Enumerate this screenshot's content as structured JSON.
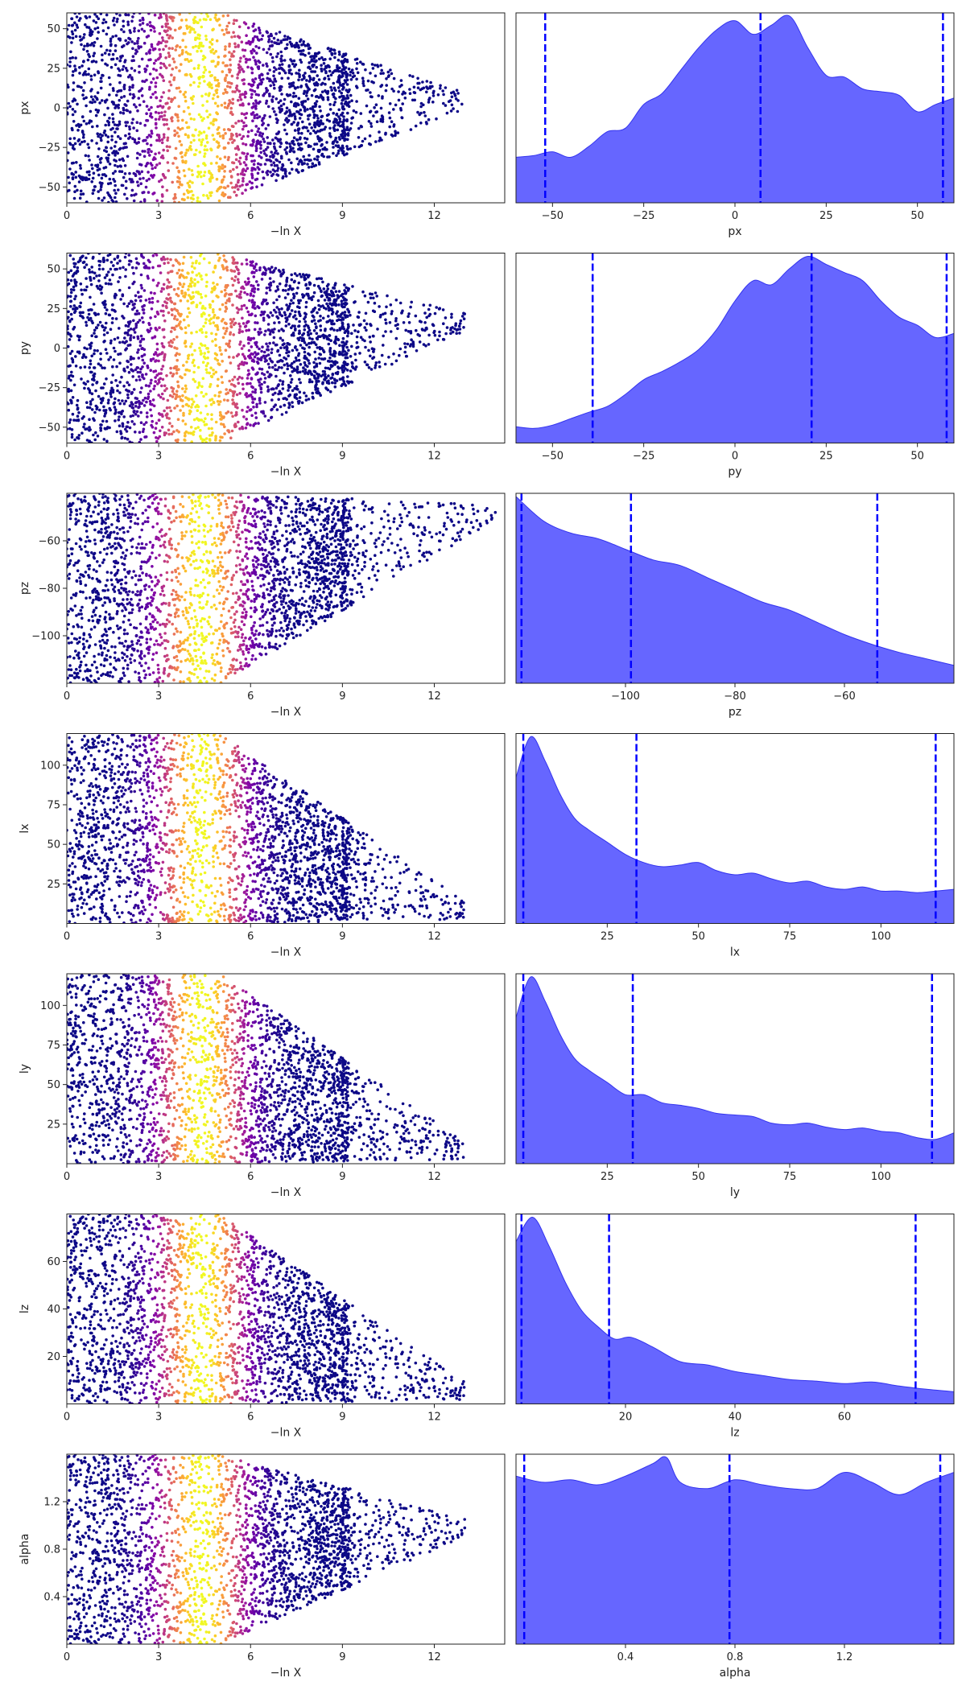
{
  "chart_data": [
    {
      "type": "scatter",
      "name": "px-trace",
      "xlabel": "−ln X",
      "ylabel": "px",
      "xlim": [
        0,
        14.3
      ],
      "ylim": [
        -60,
        60
      ],
      "xticks": [
        "0",
        "3",
        "6",
        "9",
        "12"
      ],
      "yticks": [
        "−50",
        "−25",
        "0",
        "25",
        "50"
      ],
      "xtick_values": [
        0,
        3,
        6,
        9,
        12
      ],
      "ytick_values": [
        -50,
        -25,
        0,
        25,
        50
      ],
      "colormap": "plasma",
      "marker_color_peak_x": 4.4,
      "focus_value": 5,
      "spread_end": 13
    },
    {
      "type": "area",
      "name": "px-posterior",
      "xlabel": "px",
      "xlim": [
        -60,
        60
      ],
      "xticks": [
        "−50",
        "−25",
        "0",
        "25",
        "50"
      ],
      "xtick_values": [
        -50,
        -25,
        0,
        25,
        50
      ],
      "fill_color": "#6666ff",
      "quantile_line_color": "#0000ff",
      "x": [
        -60,
        -55,
        -50,
        -45,
        -40,
        -35,
        -30,
        -25,
        -20,
        -15,
        -10,
        -5,
        0,
        5,
        10,
        15,
        20,
        25,
        30,
        35,
        40,
        45,
        50,
        55,
        60
      ],
      "density": [
        0.5,
        0.52,
        0.56,
        0.5,
        0.62,
        0.78,
        0.82,
        1.08,
        1.2,
        1.45,
        1.7,
        1.9,
        2.0,
        1.85,
        1.95,
        2.05,
        1.7,
        1.4,
        1.38,
        1.25,
        1.22,
        1.18,
        1.0,
        1.08,
        1.15
      ],
      "quantiles": [
        -52,
        7,
        57
      ]
    },
    {
      "type": "scatter",
      "name": "py-trace",
      "xlabel": "−ln X",
      "ylabel": "py",
      "xlim": [
        0,
        14.3
      ],
      "ylim": [
        -60,
        60
      ],
      "xticks": [
        "0",
        "3",
        "6",
        "9",
        "12"
      ],
      "yticks": [
        "−50",
        "−25",
        "0",
        "25",
        "50"
      ],
      "xtick_values": [
        0,
        3,
        6,
        9,
        12
      ],
      "ytick_values": [
        -50,
        -25,
        0,
        25,
        50
      ],
      "colormap": "plasma",
      "marker_color_peak_x": 4.4,
      "focus_value": 18,
      "spread_end": 13
    },
    {
      "type": "area",
      "name": "py-posterior",
      "xlabel": "py",
      "xlim": [
        -60,
        60
      ],
      "xticks": [
        "−50",
        "−25",
        "0",
        "25",
        "50"
      ],
      "xtick_values": [
        -50,
        -25,
        0,
        25,
        50
      ],
      "fill_color": "#6666ff",
      "quantile_line_color": "#0000ff",
      "x": [
        -60,
        -55,
        -50,
        -45,
        -40,
        -35,
        -30,
        -25,
        -20,
        -15,
        -10,
        -5,
        0,
        5,
        10,
        15,
        20,
        25,
        30,
        35,
        40,
        45,
        50,
        55,
        60
      ],
      "density": [
        0.2,
        0.18,
        0.22,
        0.3,
        0.38,
        0.45,
        0.6,
        0.78,
        0.88,
        1.0,
        1.15,
        1.4,
        1.75,
        2.0,
        1.95,
        2.15,
        2.3,
        2.2,
        2.1,
        2.0,
        1.75,
        1.55,
        1.45,
        1.3,
        1.35
      ],
      "quantiles": [
        -39,
        21,
        58
      ]
    },
    {
      "type": "scatter",
      "name": "pz-trace",
      "xlabel": "−ln X",
      "ylabel": "pz",
      "xlim": [
        0,
        14.3
      ],
      "ylim": [
        -120,
        -40
      ],
      "xticks": [
        "0",
        "3",
        "6",
        "9",
        "12"
      ],
      "yticks": [
        "−100",
        "−80",
        "−60"
      ],
      "xtick_values": [
        0,
        3,
        6,
        9,
        12
      ],
      "ytick_values": [
        -100,
        -80,
        -60
      ],
      "colormap": "plasma",
      "marker_color_peak_x": 4.4,
      "focus_value": -45,
      "spread_end": 14
    },
    {
      "type": "area",
      "name": "pz-posterior",
      "xlabel": "pz",
      "xlim": [
        -120,
        -40
      ],
      "xticks": [
        "−100",
        "−80",
        "−60"
      ],
      "xtick_values": [
        -100,
        -80,
        -60
      ],
      "fill_color": "#6666ff",
      "quantile_line_color": "#0000ff",
      "x": [
        -120,
        -115,
        -110,
        -105,
        -100,
        -95,
        -90,
        -85,
        -80,
        -75,
        -70,
        -65,
        -60,
        -55,
        -50,
        -45,
        -40
      ],
      "density": [
        2.3,
        2.0,
        1.85,
        1.78,
        1.65,
        1.52,
        1.45,
        1.3,
        1.15,
        1.0,
        0.9,
        0.75,
        0.6,
        0.48,
        0.38,
        0.3,
        0.22
      ],
      "quantiles": [
        -119,
        -99,
        -54
      ]
    },
    {
      "type": "scatter",
      "name": "lx-trace",
      "xlabel": "−ln X",
      "ylabel": "lx",
      "xlim": [
        0,
        14.3
      ],
      "ylim": [
        0,
        120
      ],
      "xticks": [
        "0",
        "3",
        "6",
        "9",
        "12"
      ],
      "yticks": [
        "25",
        "50",
        "75",
        "100"
      ],
      "xtick_values": [
        0,
        3,
        6,
        9,
        12
      ],
      "ytick_values": [
        25,
        50,
        75,
        100
      ],
      "colormap": "plasma",
      "marker_color_peak_x": 4.4,
      "focus_value": 3,
      "spread_end": 13
    },
    {
      "type": "area",
      "name": "lx-posterior",
      "xlabel": "lx",
      "xlim": [
        0,
        120
      ],
      "xticks": [
        "25",
        "50",
        "75",
        "100"
      ],
      "xtick_values": [
        25,
        50,
        75,
        100
      ],
      "fill_color": "#6666ff",
      "quantile_line_color": "#0000ff",
      "x": [
        0,
        4,
        8,
        12,
        16,
        20,
        25,
        30,
        35,
        40,
        45,
        50,
        55,
        60,
        65,
        70,
        75,
        80,
        85,
        90,
        95,
        100,
        105,
        110,
        115,
        120
      ],
      "density": [
        1.8,
        2.3,
        2.0,
        1.6,
        1.3,
        1.15,
        1.0,
        0.85,
        0.75,
        0.7,
        0.72,
        0.75,
        0.65,
        0.6,
        0.62,
        0.55,
        0.5,
        0.52,
        0.45,
        0.42,
        0.45,
        0.4,
        0.4,
        0.38,
        0.4,
        0.42
      ],
      "quantiles": [
        2,
        33,
        115
      ]
    },
    {
      "type": "scatter",
      "name": "ly-trace",
      "xlabel": "−ln X",
      "ylabel": "ly",
      "xlim": [
        0,
        14.3
      ],
      "ylim": [
        0,
        120
      ],
      "xticks": [
        "0",
        "3",
        "6",
        "9",
        "12"
      ],
      "yticks": [
        "25",
        "50",
        "75",
        "100"
      ],
      "xtick_values": [
        0,
        3,
        6,
        9,
        12
      ],
      "ytick_values": [
        25,
        50,
        75,
        100
      ],
      "colormap": "plasma",
      "marker_color_peak_x": 4.4,
      "focus_value": 3,
      "spread_end": 13
    },
    {
      "type": "area",
      "name": "ly-posterior",
      "xlabel": "ly",
      "xlim": [
        0,
        120
      ],
      "xticks": [
        "25",
        "50",
        "75",
        "100"
      ],
      "xtick_values": [
        25,
        50,
        75,
        100
      ],
      "fill_color": "#6666ff",
      "quantile_line_color": "#0000ff",
      "x": [
        0,
        4,
        8,
        12,
        16,
        20,
        25,
        30,
        35,
        40,
        45,
        50,
        55,
        60,
        65,
        70,
        75,
        80,
        85,
        90,
        95,
        100,
        105,
        110,
        115,
        120
      ],
      "density": [
        1.8,
        2.3,
        2.0,
        1.6,
        1.3,
        1.15,
        1.0,
        0.85,
        0.85,
        0.75,
        0.72,
        0.68,
        0.62,
        0.6,
        0.58,
        0.5,
        0.48,
        0.5,
        0.45,
        0.42,
        0.44,
        0.4,
        0.38,
        0.32,
        0.3,
        0.38
      ],
      "quantiles": [
        2,
        32,
        114
      ]
    },
    {
      "type": "scatter",
      "name": "lz-trace",
      "xlabel": "−ln X",
      "ylabel": "lz",
      "xlim": [
        0,
        14.3
      ],
      "ylim": [
        0,
        80
      ],
      "xticks": [
        "0",
        "3",
        "6",
        "9",
        "12"
      ],
      "yticks": [
        "20",
        "40",
        "60"
      ],
      "xtick_values": [
        0,
        3,
        6,
        9,
        12
      ],
      "ytick_values": [
        20,
        40,
        60
      ],
      "colormap": "plasma",
      "marker_color_peak_x": 4.4,
      "focus_value": 2,
      "spread_end": 13
    },
    {
      "type": "area",
      "name": "lz-posterior",
      "xlabel": "lz",
      "xlim": [
        0,
        80
      ],
      "xticks": [
        "20",
        "40",
        "60"
      ],
      "xtick_values": [
        20,
        40,
        60
      ],
      "fill_color": "#6666ff",
      "quantile_line_color": "#0000ff",
      "x": [
        0,
        3,
        6,
        9,
        12,
        15,
        18,
        21,
        25,
        30,
        35,
        40,
        45,
        50,
        55,
        60,
        65,
        70,
        75,
        80
      ],
      "density": [
        2.0,
        2.3,
        1.95,
        1.5,
        1.15,
        0.95,
        0.8,
        0.82,
        0.7,
        0.52,
        0.48,
        0.4,
        0.35,
        0.3,
        0.28,
        0.25,
        0.27,
        0.22,
        0.18,
        0.15
      ],
      "quantiles": [
        1,
        17,
        73
      ]
    },
    {
      "type": "scatter",
      "name": "alpha-trace",
      "xlabel": "−ln X",
      "ylabel": "alpha",
      "xlim": [
        0,
        14.3
      ],
      "ylim": [
        0,
        1.6
      ],
      "xticks": [
        "0",
        "3",
        "6",
        "9",
        "12"
      ],
      "yticks": [
        "0.4",
        "0.8",
        "1.2"
      ],
      "xtick_values": [
        0,
        3,
        6,
        9,
        12
      ],
      "ytick_values": [
        0.4,
        0.8,
        1.2
      ],
      "colormap": "plasma",
      "marker_color_peak_x": 4.4,
      "focus_value": 1.0,
      "spread_end": 13
    },
    {
      "type": "area",
      "name": "alpha-posterior",
      "xlabel": "alpha",
      "xlim": [
        0,
        1.6
      ],
      "xticks": [
        "0.4",
        "0.8",
        "1.2"
      ],
      "xtick_values": [
        0.4,
        0.8,
        1.2
      ],
      "fill_color": "#6666ff",
      "quantile_line_color": "#0000ff",
      "x": [
        0,
        0.1,
        0.2,
        0.3,
        0.4,
        0.5,
        0.55,
        0.6,
        0.7,
        0.8,
        0.9,
        1.0,
        1.1,
        1.2,
        1.3,
        1.4,
        1.5,
        1.6
      ],
      "density": [
        1.35,
        1.3,
        1.32,
        1.28,
        1.35,
        1.45,
        1.5,
        1.3,
        1.25,
        1.32,
        1.28,
        1.25,
        1.25,
        1.38,
        1.3,
        1.2,
        1.3,
        1.38
      ],
      "quantiles": [
        0.03,
        0.78,
        1.55
      ]
    }
  ]
}
